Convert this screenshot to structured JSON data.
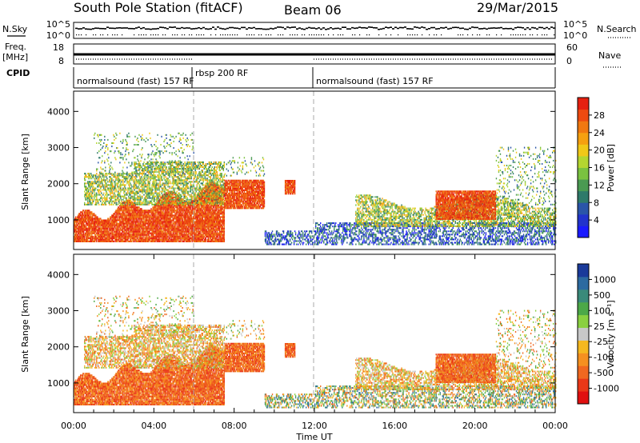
{
  "header": {
    "station": "South Pole Station (fitACF)",
    "beam": "Beam 06",
    "date": "29/Mar/2015"
  },
  "strip_labels": {
    "nsky": "N.Sky",
    "nsky_ticks": [
      "10^5",
      "10^0"
    ],
    "nsearch": "N.Search",
    "nsearch_ticks": [
      "10^5",
      "10^0"
    ],
    "freq_line1": "Freq.",
    "freq_line2": "[MHz]",
    "freq_ticks": [
      "18",
      "8"
    ],
    "nave": "Nave",
    "nave_ticks": [
      "60",
      "0"
    ],
    "cpid": "CPID"
  },
  "modes": [
    {
      "text": "normalsound (fast) 157 RF",
      "start_hour": 0,
      "end_hour": 6
    },
    {
      "text": "rbsp 200 RF",
      "start_hour": 6,
      "end_hour": 12
    },
    {
      "text": "normalsound (fast) 157 RF",
      "start_hour": 12,
      "end_hour": 24
    }
  ],
  "chart_data": [
    {
      "type": "heatmap",
      "panel": "power",
      "ylabel": "Slant Range [km]",
      "xlabel": "Time UT",
      "x_ticks": [
        "00:00",
        "04:00",
        "08:00",
        "12:00",
        "16:00",
        "20:00",
        "00:00"
      ],
      "xlim_hours": [
        0,
        24
      ],
      "y_ticks": [
        1000,
        2000,
        3000,
        4000
      ],
      "ylim": [
        180,
        4560
      ],
      "colorbar": {
        "label": "Power [dB]",
        "ticks": [
          "4",
          "8",
          "12",
          "16",
          "20",
          "24",
          "28"
        ],
        "range": [
          0,
          32
        ],
        "colors": [
          "#1a1aff",
          "#2233cc",
          "#2a55a8",
          "#2e7a6a",
          "#4a9a52",
          "#7ac240",
          "#b4d630",
          "#f0c818",
          "#f5a010",
          "#f07810",
          "#ee4a10",
          "#e62010"
        ]
      }
    },
    {
      "type": "heatmap",
      "panel": "velocity",
      "ylabel": "Slant Range [km]",
      "xlabel": "Time UT",
      "x_ticks": [
        "00:00",
        "04:00",
        "08:00",
        "12:00",
        "16:00",
        "20:00",
        "00:00"
      ],
      "xlim_hours": [
        0,
        24
      ],
      "y_ticks": [
        1000,
        2000,
        3000,
        4000
      ],
      "ylim": [
        180,
        4560
      ],
      "colorbar": {
        "label": "Velocity [m s⁻¹]",
        "ticks": [
          "1000",
          "500",
          "100",
          "25",
          "-25",
          "-100",
          "-500",
          "-1000"
        ],
        "colors": [
          "#1a3a9a",
          "#2c6aa0",
          "#3a8a7a",
          "#4ca848",
          "#8ad040",
          "#c8c8c8",
          "#f5b820",
          "#f59020",
          "#f06820",
          "#ea3818",
          "#e01010"
        ]
      }
    }
  ],
  "hour_markers": [
    6,
    12
  ]
}
